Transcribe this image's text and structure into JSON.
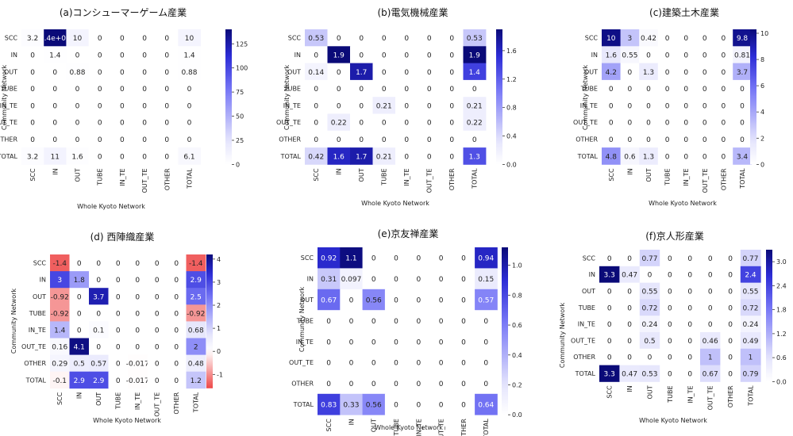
{
  "figure": {
    "row_labels": [
      "SCC",
      "IN",
      "OUT",
      "TUBE",
      "IN_TE",
      "OUT_TE",
      "OTHER",
      "TOTAL"
    ],
    "col_labels": [
      "SCC",
      "IN",
      "OUT",
      "TUBE",
      "IN_TE",
      "OUT_TE",
      "OTHER",
      "TOTAL"
    ],
    "xlabel": "Whole Kyoto Network",
    "ylabel": "Community Network"
  },
  "chart_data": [
    {
      "type": "heatmap",
      "title": "(a)コンシューマーゲーム産業",
      "colormap": "white-blue",
      "vmin": 0,
      "vmax": 140,
      "colorbar_ticks": [
        0,
        25,
        50,
        75,
        100,
        125
      ],
      "values": [
        [
          3.2,
          140,
          10,
          0,
          0,
          0,
          0,
          10
        ],
        [
          0,
          1.4,
          0,
          0,
          0,
          0,
          0,
          1.4
        ],
        [
          0,
          0,
          0.88,
          0,
          0,
          0,
          0,
          0.88
        ],
        [
          0,
          0,
          0,
          0,
          0,
          0,
          0,
          0
        ],
        [
          0,
          0,
          0,
          0,
          0,
          0,
          0,
          0
        ],
        [
          0,
          0,
          0,
          0,
          0,
          0,
          0,
          0
        ],
        [
          0,
          0,
          0,
          0,
          0,
          0,
          0,
          0
        ],
        [
          3.2,
          11,
          1.6,
          0,
          0,
          0,
          0,
          6.1
        ]
      ],
      "labels": [
        [
          "3.2",
          "1.4e+02",
          "10",
          "0",
          "0",
          "0",
          "0",
          "10"
        ],
        [
          "0",
          "1.4",
          "0",
          "0",
          "0",
          "0",
          "0",
          "1.4"
        ],
        [
          "0",
          "0",
          "0.88",
          "0",
          "0",
          "0",
          "0",
          "0.88"
        ],
        [
          "0",
          "0",
          "0",
          "0",
          "0",
          "0",
          "0",
          "0"
        ],
        [
          "0",
          "0",
          "0",
          "0",
          "0",
          "0",
          "0",
          "0"
        ],
        [
          "0",
          "0",
          "0",
          "0",
          "0",
          "0",
          "0",
          "0"
        ],
        [
          "0",
          "0",
          "0",
          "0",
          "0",
          "0",
          "0",
          "0"
        ],
        [
          "3.2",
          "11",
          "1.6",
          "0",
          "0",
          "0",
          "0",
          "6.1"
        ]
      ]
    },
    {
      "type": "heatmap",
      "title": "(b)電気機械産業",
      "colormap": "white-blue",
      "vmin": 0,
      "vmax": 1.9,
      "colorbar_ticks": [
        "0.0",
        "0.4",
        "0.8",
        "1.2",
        "1.6"
      ],
      "values": [
        [
          0.53,
          0,
          0,
          0,
          0,
          0,
          0,
          0.53
        ],
        [
          0,
          1.9,
          0,
          0,
          0,
          0,
          0,
          1.9
        ],
        [
          0.14,
          0,
          1.7,
          0,
          0,
          0,
          0,
          1.4
        ],
        [
          0,
          0,
          0,
          0,
          0,
          0,
          0,
          0
        ],
        [
          0,
          0,
          0,
          0.21,
          0,
          0,
          0,
          0.21
        ],
        [
          0,
          0.22,
          0,
          0,
          0,
          0,
          0,
          0.22
        ],
        [
          0,
          0,
          0,
          0,
          0,
          0,
          0,
          0
        ],
        [
          0.42,
          1.6,
          1.7,
          0.21,
          0,
          0,
          0,
          1.3
        ]
      ],
      "labels": [
        [
          "0.53",
          "0",
          "0",
          "0",
          "0",
          "0",
          "0",
          "0.53"
        ],
        [
          "0",
          "1.9",
          "0",
          "0",
          "0",
          "0",
          "0",
          "1.9"
        ],
        [
          "0.14",
          "0",
          "1.7",
          "0",
          "0",
          "0",
          "0",
          "1.4"
        ],
        [
          "0",
          "0",
          "0",
          "0",
          "0",
          "0",
          "0",
          "0"
        ],
        [
          "0",
          "0",
          "0",
          "0.21",
          "0",
          "0",
          "0",
          "0.21"
        ],
        [
          "0",
          "0.22",
          "0",
          "0",
          "0",
          "0",
          "0",
          "0.22"
        ],
        [
          "0",
          "0",
          "0",
          "0",
          "0",
          "0",
          "0",
          "0"
        ],
        [
          "0.42",
          "1.6",
          "1.7",
          "0.21",
          "0",
          "0",
          "0",
          "1.3"
        ]
      ]
    },
    {
      "type": "heatmap",
      "title": "(c)建築土木産業",
      "colormap": "white-blue",
      "vmin": 0,
      "vmax": 10.3,
      "colorbar_ticks": [
        0,
        2,
        4,
        6,
        8,
        10
      ],
      "values": [
        [
          10,
          3,
          0.42,
          0,
          0,
          0,
          0,
          9.8
        ],
        [
          1.6,
          0.55,
          0,
          0,
          0,
          0,
          0,
          0.81
        ],
        [
          4.2,
          0,
          1.3,
          0,
          0,
          0,
          0,
          3.7
        ],
        [
          0,
          0,
          0,
          0,
          0,
          0,
          0,
          0
        ],
        [
          0,
          0,
          0,
          0,
          0,
          0,
          0,
          0
        ],
        [
          0,
          0,
          0,
          0,
          0,
          0,
          0,
          0
        ],
        [
          0,
          0,
          0,
          0,
          0,
          0,
          0,
          0
        ],
        [
          4.8,
          0.6,
          1.3,
          0,
          0,
          0,
          0,
          3.4
        ]
      ],
      "labels": [
        [
          "10",
          "3",
          "0.42",
          "0",
          "0",
          "0",
          "0",
          "9.8"
        ],
        [
          "1.6",
          "0.55",
          "0",
          "0",
          "0",
          "0",
          "0",
          "0.81"
        ],
        [
          "4.2",
          "0",
          "1.3",
          "0",
          "0",
          "0",
          "0",
          "3.7"
        ],
        [
          "0",
          "0",
          "0",
          "0",
          "0",
          "0",
          "0",
          "0"
        ],
        [
          "0",
          "0",
          "0",
          "0",
          "0",
          "0",
          "0",
          "0"
        ],
        [
          "0",
          "0",
          "0",
          "0",
          "0",
          "0",
          "0",
          "0"
        ],
        [
          "0",
          "0",
          "0",
          "0",
          "0",
          "0",
          "0",
          "0"
        ],
        [
          "4.8",
          "0.6",
          "1.3",
          "0",
          "0",
          "0",
          "0",
          "3.4"
        ]
      ]
    },
    {
      "type": "heatmap",
      "title": "(d) 西陣織産業",
      "colormap": "red-white-blue",
      "vmin": -1.6,
      "vmax": 4.2,
      "colorbar_ticks": [
        -1,
        0,
        1,
        2,
        3,
        4
      ],
      "values": [
        [
          -1.4,
          0,
          0,
          0,
          0,
          0,
          0,
          -1.4
        ],
        [
          3,
          1.8,
          0,
          0,
          0,
          0,
          0,
          2.9
        ],
        [
          -0.92,
          0,
          3.7,
          0,
          0,
          0,
          0,
          2.5
        ],
        [
          -0.92,
          0,
          0,
          0,
          0,
          0,
          0,
          -0.92
        ],
        [
          1.4,
          0,
          0.1,
          0,
          0,
          0,
          0,
          0.68
        ],
        [
          0.16,
          4.1,
          0,
          0,
          0,
          0,
          0,
          2
        ],
        [
          0.29,
          0.5,
          0.57,
          0,
          -0.017,
          0,
          0,
          0.48
        ],
        [
          -0.1,
          2.9,
          2.9,
          0,
          -0.017,
          0,
          0,
          1.2
        ]
      ],
      "labels": [
        [
          "-1.4",
          "0",
          "0",
          "0",
          "0",
          "0",
          "0",
          "-1.4"
        ],
        [
          "3",
          "1.8",
          "0",
          "0",
          "0",
          "0",
          "0",
          "2.9"
        ],
        [
          "-0.92",
          "0",
          "3.7",
          "0",
          "0",
          "0",
          "0",
          "2.5"
        ],
        [
          "-0.92",
          "0",
          "0",
          "0",
          "0",
          "0",
          "0",
          "-0.92"
        ],
        [
          "1.4",
          "0",
          "0.1",
          "0",
          "0",
          "0",
          "0",
          "0.68"
        ],
        [
          "0.16",
          "4.1",
          "0",
          "0",
          "0",
          "0",
          "0",
          "2"
        ],
        [
          "0.29",
          "0.5",
          "0.57",
          "0",
          "-0.017",
          "0",
          "0",
          "0.48"
        ],
        [
          "-0.1",
          "2.9",
          "2.9",
          "0",
          "-0.017",
          "0",
          "0",
          "1.2"
        ]
      ]
    },
    {
      "type": "heatmap",
      "title": "(e)京友禅産業",
      "colormap": "white-blue",
      "vmin": 0,
      "vmax": 1.12,
      "colorbar_ticks": [
        "0.0",
        "0.2",
        "0.4",
        "0.6",
        "0.8",
        "1.0"
      ],
      "values": [
        [
          0.92,
          1.1,
          0,
          0,
          0,
          0,
          0,
          0.94
        ],
        [
          0.31,
          0.097,
          0,
          0,
          0,
          0,
          0,
          0.15
        ],
        [
          0.67,
          0,
          0.56,
          0,
          0,
          0,
          0,
          0.57
        ],
        [
          0,
          0,
          0,
          0,
          0,
          0,
          0,
          0
        ],
        [
          0,
          0,
          0,
          0,
          0,
          0,
          0,
          0
        ],
        [
          0,
          0,
          0,
          0,
          0,
          0,
          0,
          0
        ],
        [
          0,
          0,
          0,
          0,
          0,
          0,
          0,
          0
        ],
        [
          0.83,
          0.33,
          0.56,
          0,
          0,
          0,
          0,
          0.64
        ]
      ],
      "labels": [
        [
          "0.92",
          "1.1",
          "0",
          "0",
          "0",
          "0",
          "0",
          "0.94"
        ],
        [
          "0.31",
          "0.097",
          "0",
          "0",
          "0",
          "0",
          "0",
          "0.15"
        ],
        [
          "0.67",
          "0",
          "0.56",
          "0",
          "0",
          "0",
          "0",
          "0.57"
        ],
        [
          "0",
          "0",
          "0",
          "0",
          "0",
          "0",
          "0",
          "0"
        ],
        [
          "0",
          "0",
          "0",
          "0",
          "0",
          "0",
          "0",
          "0"
        ],
        [
          "0",
          "0",
          "0",
          "0",
          "0",
          "0",
          "0",
          "0"
        ],
        [
          "0",
          "0",
          "0",
          "0",
          "0",
          "0",
          "0",
          "0"
        ],
        [
          "0.83",
          "0.33",
          "0.56",
          "0",
          "0",
          "0",
          "0",
          "0.64"
        ]
      ]
    },
    {
      "type": "heatmap",
      "title": "(f)京人形産業",
      "colormap": "white-blue",
      "vmin": 0,
      "vmax": 3.3,
      "colorbar_ticks": [
        "0.0",
        "0.6",
        "1.2",
        "1.8",
        "2.4",
        "3.0"
      ],
      "values": [
        [
          0,
          0,
          0.77,
          0,
          0,
          0,
          0,
          0.77
        ],
        [
          3.3,
          0.47,
          0,
          0,
          0,
          0,
          0,
          2.4
        ],
        [
          0,
          0,
          0.55,
          0,
          0,
          0,
          0,
          0.55
        ],
        [
          0,
          0,
          0.72,
          0,
          0,
          0,
          0,
          0.72
        ],
        [
          0,
          0,
          0.24,
          0,
          0,
          0,
          0,
          0.24
        ],
        [
          0,
          0,
          0.5,
          0,
          0,
          0.46,
          0,
          0.49
        ],
        [
          0,
          0,
          0,
          0,
          0,
          1,
          0,
          1
        ],
        [
          3.3,
          0.47,
          0.53,
          0,
          0,
          0.67,
          0,
          0.79
        ]
      ],
      "labels": [
        [
          "0",
          "0",
          "0.77",
          "0",
          "0",
          "0",
          "0",
          "0.77"
        ],
        [
          "3.3",
          "0.47",
          "0",
          "0",
          "0",
          "0",
          "0",
          "2.4"
        ],
        [
          "0",
          "0",
          "0.55",
          "0",
          "0",
          "0",
          "0",
          "0.55"
        ],
        [
          "0",
          "0",
          "0.72",
          "0",
          "0",
          "0",
          "0",
          "0.72"
        ],
        [
          "0",
          "0",
          "0.24",
          "0",
          "0",
          "0",
          "0",
          "0.24"
        ],
        [
          "0",
          "0",
          "0.5",
          "0",
          "0",
          "0.46",
          "0",
          "0.49"
        ],
        [
          "0",
          "0",
          "0",
          "0",
          "0",
          "1",
          "0",
          "1"
        ],
        [
          "3.3",
          "0.47",
          "0.53",
          "0",
          "0",
          "0.67",
          "0",
          "0.79"
        ]
      ]
    }
  ]
}
